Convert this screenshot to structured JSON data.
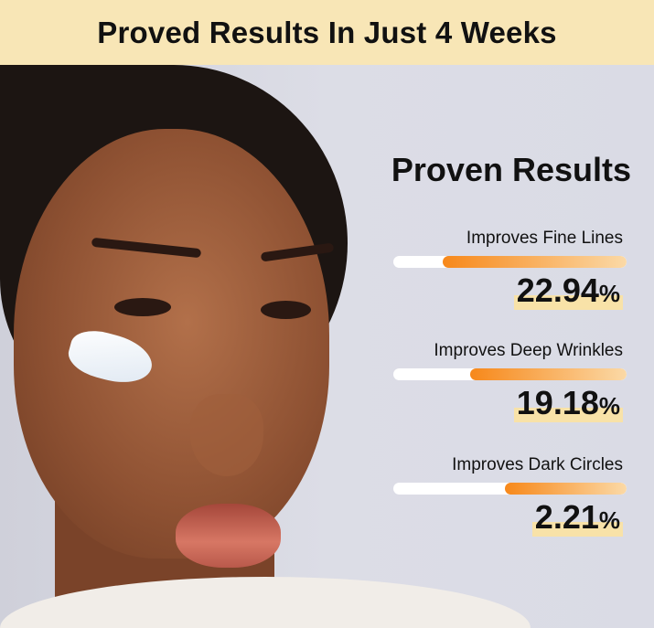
{
  "header": {
    "title": "Proved Results In Just 4 Weeks"
  },
  "panel": {
    "title": "Proven Results",
    "metrics": [
      {
        "label": "Improves Fine Lines",
        "value": "22.94",
        "unit": "%",
        "bar_fill": 0.79
      },
      {
        "label": "Improves Deep Wrinkles",
        "value": "19.18",
        "unit": "%",
        "bar_fill": 0.67
      },
      {
        "label": "Improves Dark Circles",
        "value": "2.21",
        "unit": "%",
        "bar_fill": 0.52
      }
    ]
  },
  "colors": {
    "header_bg": "#f8e6b6",
    "bar_start": "#f7881a",
    "bar_end": "#fbd9a6",
    "highlight": "#f8e2a8",
    "background": "#d9dae4"
  }
}
